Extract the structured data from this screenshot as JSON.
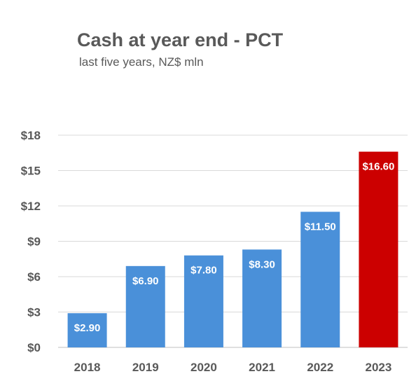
{
  "chart_data": {
    "type": "bar",
    "title": "Cash at year end - PCT",
    "subtitle": "last five years, NZ$ mln",
    "xlabel": "",
    "ylabel": "",
    "categories": [
      "2018",
      "2019",
      "2020",
      "2021",
      "2022",
      "2023"
    ],
    "values": [
      2.9,
      6.9,
      7.8,
      8.3,
      11.5,
      16.6
    ],
    "data_labels": [
      "$2.90",
      "$6.90",
      "$7.80",
      "$8.30",
      "$11.50",
      "$16.60"
    ],
    "ylim": [
      0,
      18
    ],
    "yticks": [
      0,
      3,
      6,
      9,
      12,
      15,
      18
    ],
    "ytick_labels": [
      "$0",
      "$3",
      "$6",
      "$9",
      "$12",
      "$15",
      "$18"
    ],
    "grid": true,
    "legend": "none",
    "colors": {
      "bar": "#4a90d9",
      "highlight": "#cc0000",
      "highlight_category": "2023",
      "text": "#595959",
      "grid": "#d9d9d9"
    }
  }
}
